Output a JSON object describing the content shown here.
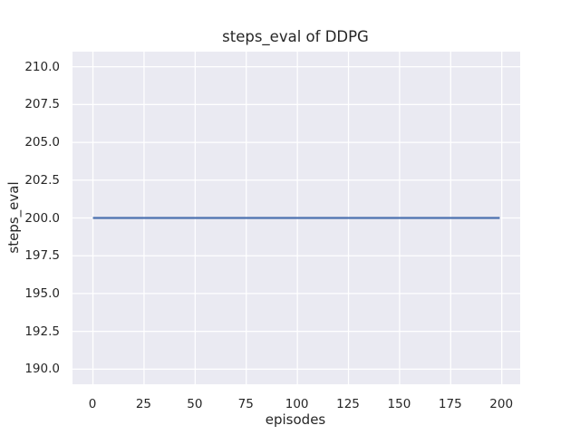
{
  "figure": {
    "background_color": "#ffffff"
  },
  "chart_data": {
    "type": "line",
    "title": "steps_eval of DDPG",
    "xlabel": "episodes",
    "ylabel": "steps_eval",
    "xlim": [
      -10,
      209
    ],
    "ylim": [
      189,
      211
    ],
    "grid": true,
    "legend_position": "none",
    "x_ticks": [
      0,
      25,
      50,
      75,
      100,
      125,
      150,
      175,
      200
    ],
    "x_tick_labels": [
      "0",
      "25",
      "50",
      "75",
      "100",
      "125",
      "150",
      "175",
      "200"
    ],
    "y_ticks": [
      190,
      192.5,
      195,
      197.5,
      200,
      202.5,
      205,
      207.5,
      210
    ],
    "y_tick_labels": [
      "190.0",
      "192.5",
      "195.0",
      "197.5",
      "200.0",
      "202.5",
      "205.0",
      "207.5",
      "210.0"
    ],
    "series": [
      {
        "name": "steps_eval",
        "constant_value": 200,
        "x_start": 0,
        "x_end": 199,
        "points": [
          [
            0,
            200
          ],
          [
            199,
            200
          ]
        ],
        "color": "#4C72B0",
        "line_width": 2.2
      }
    ],
    "styles": {
      "plot_background": "#EAEAF2",
      "grid_color": "#FFFFFF",
      "grid_width": 1.25,
      "text_color": "#262626"
    }
  }
}
